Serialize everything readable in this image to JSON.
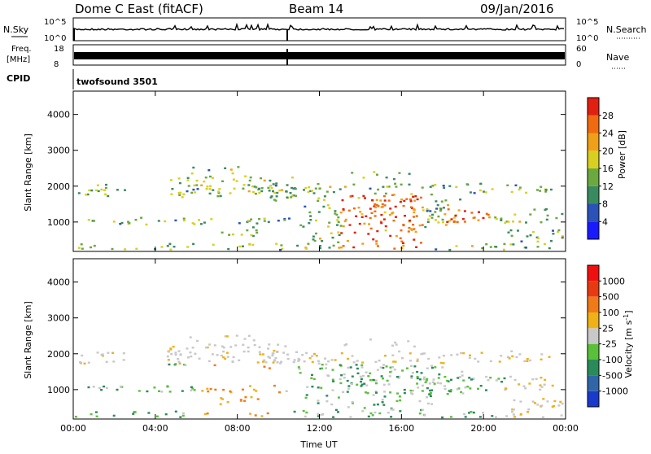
{
  "header": {
    "title": "Dome C East (fitACF)",
    "beam": "Beam 14",
    "date": "09/Jan/2016"
  },
  "strip_nsky": {
    "label": "N.Sky",
    "ticks_left": [
      "10^5",
      "10^0"
    ],
    "ticks_right": [
      "10^5",
      "10^0"
    ],
    "right_label": "N.Search"
  },
  "strip_freq": {
    "label_line1": "Freq.",
    "label_line2": "[MHz]",
    "ticks_left": [
      "18",
      "8"
    ],
    "ticks_right": [
      "60",
      "0"
    ],
    "right_label": "Nave"
  },
  "strip_cpid": {
    "label": "CPID",
    "value": "twofsound 3501"
  },
  "chart_data": [
    {
      "type": "heatmap",
      "quantity": "Power",
      "ylabel": "Slant Range [km]",
      "xlabel": "Time UT",
      "ylim": [
        180,
        4650
      ],
      "y_ticks": [
        1000,
        2000,
        3000,
        4000
      ],
      "x_ticks": [
        "00:00",
        "04:00",
        "08:00",
        "12:00",
        "16:00",
        "20:00",
        "00:00"
      ],
      "colorbar": {
        "label": "Power [dB]",
        "ticks": [
          "4",
          "8",
          "12",
          "16",
          "20",
          "24",
          "28"
        ],
        "colors": [
          "#1a1aff",
          "#2a52b8",
          "#3a8a60",
          "#6aa840",
          "#d8d020",
          "#f0a018",
          "#f06a10",
          "#e02010"
        ]
      }
    },
    {
      "type": "heatmap",
      "quantity": "Velocity",
      "ylabel": "Slant Range [km]",
      "xlabel": "Time UT",
      "ylim": [
        180,
        4650
      ],
      "y_ticks": [
        1000,
        2000,
        3000,
        4000
      ],
      "x_ticks": [
        "00:00",
        "04:00",
        "08:00",
        "12:00",
        "16:00",
        "20:00",
        "00:00"
      ],
      "colorbar": {
        "label": "Velocity [m s",
        "label_sup": "-1",
        "label_end": "]",
        "ticks": [
          "1000",
          "500",
          "100",
          "25",
          "-25",
          "-100",
          "-500",
          "-1000"
        ],
        "colors": [
          "#1a3acc",
          "#3066a8",
          "#2a8a5a",
          "#5ac03a",
          "#c8c8c8",
          "#f0b018",
          "#f07a18",
          "#e83a10",
          "#ee1010"
        ]
      }
    }
  ]
}
